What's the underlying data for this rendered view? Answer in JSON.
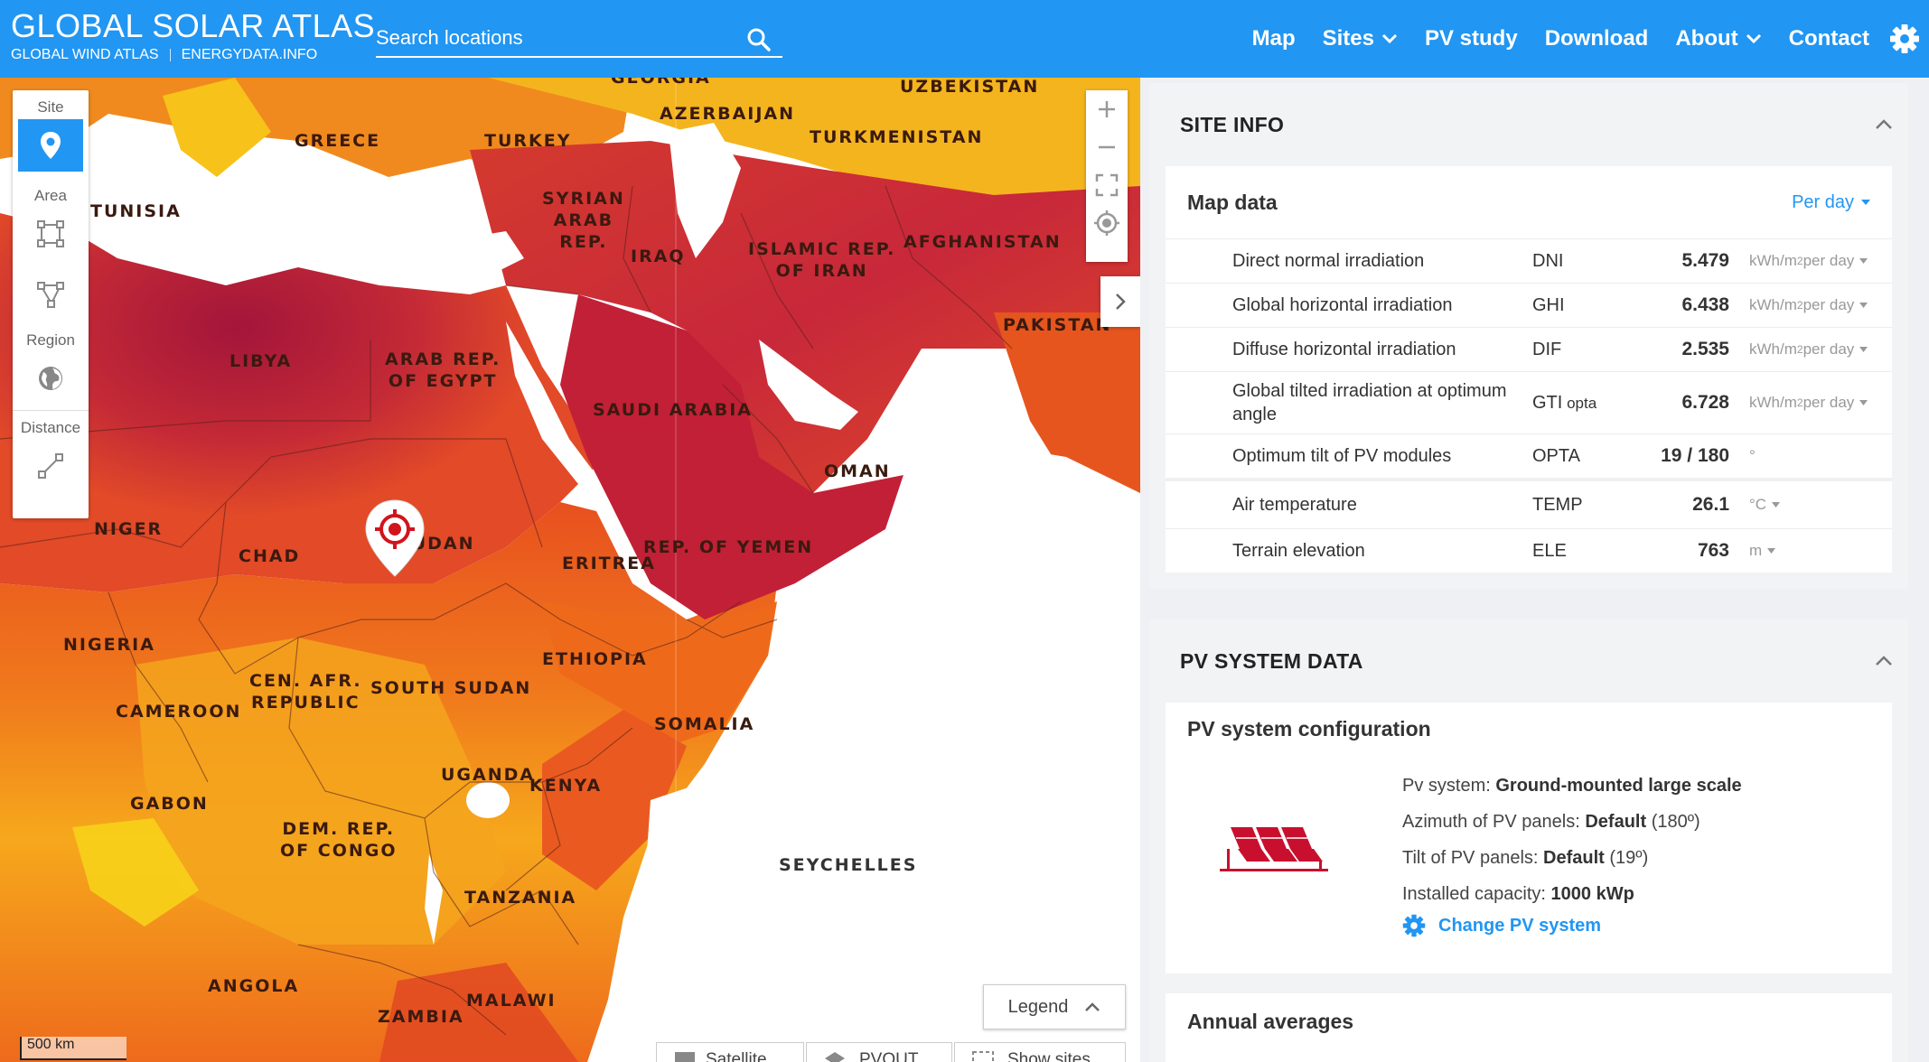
{
  "header": {
    "title": "GLOBAL SOLAR ATLAS",
    "link_wind": "GLOBAL WIND ATLAS",
    "link_energydata": "ENERGYDATA.INFO",
    "search_placeholder": "Search locations",
    "nav": {
      "map": "Map",
      "sites": "Sites",
      "pv_study": "PV study",
      "download": "Download",
      "about": "About",
      "contact": "Contact"
    }
  },
  "map": {
    "tools": {
      "site": "Site",
      "area": "Area",
      "region": "Region",
      "distance": "Distance"
    },
    "labels": {
      "georgia": "GEORGIA",
      "uzbekistan": "UZBEKISTAN",
      "azerbaijan": "AZERBAIJAN",
      "greece": "GREECE",
      "turkey": "TURKEY",
      "turkmenistan": "TURKMENISTAN",
      "syria_1": "SYRIAN",
      "syria_2": "ARAB",
      "syria_3": "REP.",
      "tunisia": "TUNISIA",
      "iraq": "IRAQ",
      "iran_1": "ISLAMIC REP.",
      "iran_2": "OF IRAN",
      "afghanistan": "AFGHANISTAN",
      "pakistan": "PAKISTAN",
      "libya": "LIBYA",
      "egypt_1": "ARAB REP.",
      "egypt_2": "OF EGYPT",
      "saudi": "SAUDI ARABIA",
      "oman": "OMAN",
      "niger": "NIGER",
      "chad": "CHAD",
      "sudan": "SUDAN",
      "eritrea": "ERITREA",
      "yemen": "REP. OF YEMEN",
      "nigeria": "NIGERIA",
      "ethiopia": "ETHIOPIA",
      "car_1": "CEN. AFR.",
      "car_2": "REPUBLIC",
      "south_sudan": "SOUTH SUDAN",
      "cameroon": "CAMEROON",
      "somalia": "SOMALIA",
      "uganda": "UGANDA",
      "kenya": "KENYA",
      "gabon": "GABON",
      "drc_1": "DEM. REP.",
      "drc_2": "OF CONGO",
      "seychelles": "SEYCHELLES",
      "tanzania": "TANZANIA",
      "angola": "ANGOLA",
      "malawi": "MALAWI",
      "zambia": "ZAMBIA"
    },
    "legend": "Legend",
    "bottom_buttons": {
      "satellite": "Satellite",
      "pvout": "PVOUT",
      "show_sites": "Show sites"
    },
    "scale": "500 km"
  },
  "site_info": {
    "title": "SITE INFO",
    "map_data_title": "Map data",
    "per_day": "Per day",
    "rows": [
      {
        "name": "Direct normal irradiation",
        "abbr": "DNI",
        "abbr_sub": "",
        "value": "5.479",
        "unit": "kWh/m",
        "unit_sup": "2",
        "unit_suffix": " per day"
      },
      {
        "name": "Global horizontal irradiation",
        "abbr": "GHI",
        "abbr_sub": "",
        "value": "6.438",
        "unit": "kWh/m",
        "unit_sup": "2",
        "unit_suffix": " per day"
      },
      {
        "name": "Diffuse horizontal irradiation",
        "abbr": "DIF",
        "abbr_sub": "",
        "value": "2.535",
        "unit": "kWh/m",
        "unit_sup": "2",
        "unit_suffix": " per day"
      },
      {
        "name": "Global tilted irradiation at optimum angle",
        "abbr": "GTI",
        "abbr_sub": " opta",
        "value": "6.728",
        "unit": "kWh/m",
        "unit_sup": "2",
        "unit_suffix": " per day"
      },
      {
        "name": "Optimum tilt of PV modules",
        "abbr": "OPTA",
        "abbr_sub": "",
        "value": "19 /  180",
        "unit": "°",
        "unit_sup": "",
        "unit_suffix": ""
      },
      {
        "name": "Air temperature",
        "abbr": "TEMP",
        "abbr_sub": "",
        "value": "26.1",
        "unit": "°C",
        "unit_sup": "",
        "unit_suffix": ""
      },
      {
        "name": "Terrain elevation",
        "abbr": "ELE",
        "abbr_sub": "",
        "value": "763",
        "unit": "m",
        "unit_sup": "",
        "unit_suffix": ""
      }
    ]
  },
  "pv_system": {
    "title": "PV SYSTEM DATA",
    "config_title": "PV system configuration",
    "system_label": "Pv system:",
    "system_value": "Ground-mounted large scale",
    "azimuth_label": "Azimuth of PV panels:",
    "azimuth_value": "Default",
    "azimuth_detail": " (180º)",
    "tilt_label": "Tilt of PV panels:",
    "tilt_value": "Default",
    "tilt_detail": " (19º)",
    "capacity_label": "Installed capacity:",
    "capacity_value": "1000 kWp",
    "change_button": "Change PV system",
    "annual_title": "Annual averages"
  },
  "colors": {
    "header_blue": "#2196f3",
    "accent_red": "#c8102e",
    "map_dark": "#b01c38",
    "map_orange": "#f36a21",
    "map_yellow": "#f6b21c"
  }
}
